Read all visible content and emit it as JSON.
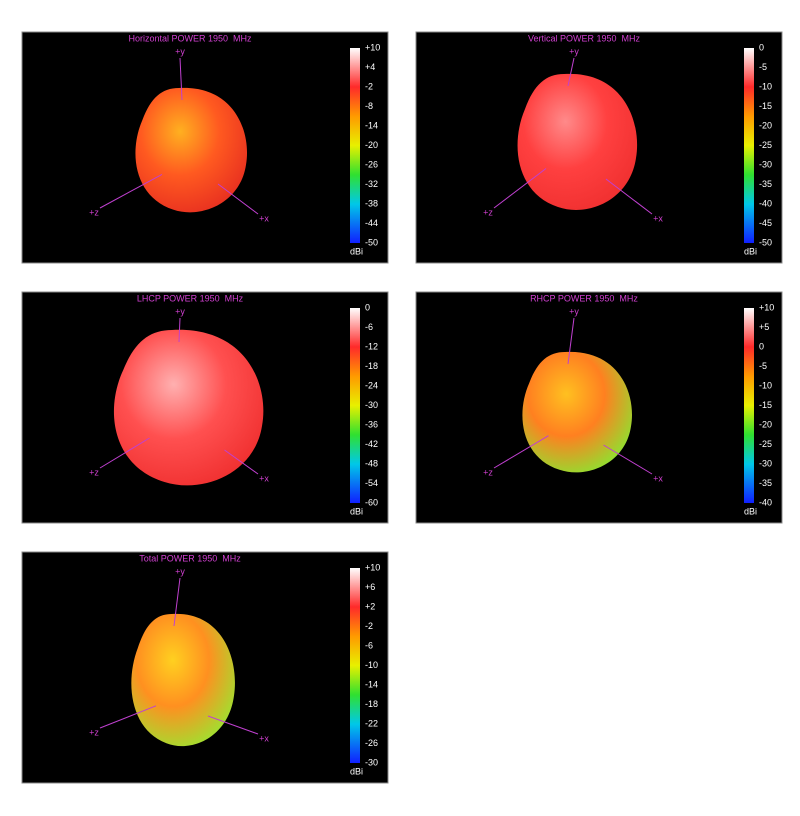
{
  "panels": [
    {
      "title": "Horizontal POWER 1950  MHz",
      "scale": [
        "+10",
        "+4",
        "-2",
        "-8",
        "-14",
        "-20",
        "-26",
        "-32",
        "-38",
        "-44",
        "-50"
      ],
      "unit": "dBi",
      "axes": {
        "y": "+y",
        "z": "+z",
        "x": "+x"
      }
    },
    {
      "title": "Vertical POWER 1950  MHz",
      "scale": [
        "0",
        "-5",
        "-10",
        "-15",
        "-20",
        "-25",
        "-30",
        "-35",
        "-40",
        "-45",
        "-50"
      ],
      "unit": "dBi",
      "axes": {
        "y": "+y",
        "z": "+z",
        "x": "+x"
      }
    },
    {
      "title": "LHCP POWER 1950  MHz",
      "scale": [
        "0",
        "-6",
        "-12",
        "-18",
        "-24",
        "-30",
        "-36",
        "-42",
        "-48",
        "-54",
        "-60"
      ],
      "unit": "dBi",
      "axes": {
        "y": "+y",
        "z": "+z",
        "x": "+x"
      }
    },
    {
      "title": "RHCP POWER 1950  MHz",
      "scale": [
        "+10",
        "+5",
        "0",
        "-5",
        "-10",
        "-15",
        "-20",
        "-25",
        "-30",
        "-35",
        "-40"
      ],
      "unit": "dBi",
      "axes": {
        "y": "+y",
        "z": "+z",
        "x": "+x"
      }
    },
    {
      "title": "Total POWER 1950  MHz",
      "scale": [
        "+10",
        "+6",
        "+2",
        "-2",
        "-6",
        "-10",
        "-14",
        "-18",
        "-22",
        "-26",
        "-30"
      ],
      "unit": "dBi",
      "axes": {
        "y": "+y",
        "z": "+z",
        "x": "+x"
      }
    }
  ]
}
